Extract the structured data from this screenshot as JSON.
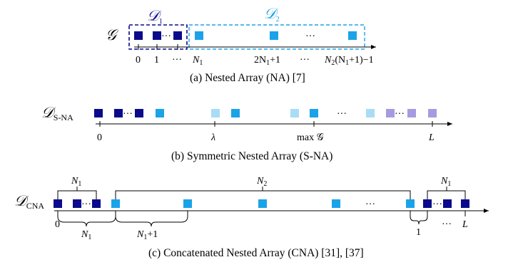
{
  "colors": {
    "dark_blue": "#0a0a8c",
    "cyan": "#1aa3e8",
    "light_cyan": "#a8ddf5",
    "lavender": "#a89ae0",
    "axis": "#000000"
  },
  "panel_a": {
    "set_symbol": "𝒢",
    "d1_symbol": "𝒟",
    "d1_sub": "1",
    "d2_symbol": "𝒟",
    "d2_sub": "2",
    "dots_inner": "···",
    "dots_outer": "···",
    "ticks": {
      "zero": "0",
      "one": "1",
      "dots": "···",
      "n1": "N",
      "n1_sub": "1",
      "two_n1_plus_1": "2N",
      "two_n1_plus_1_sub": "1",
      "two_n1_plus_1_tail": "+1",
      "mid_dots": "···",
      "last": "N",
      "last_sub": "2",
      "last_tail_a": "(N",
      "last_tail_sub": "1",
      "last_tail_b": "+1)−1"
    },
    "caption": "(a) Nested Array (NA) [7]"
  },
  "panel_b": {
    "set_symbol": "𝒟",
    "set_sub": "S-NA",
    "dots_inner": "···",
    "dots_mid": "···",
    "dots_right": "···",
    "ticks": {
      "zero": "0",
      "lambda": "λ",
      "max_g": "max 𝒢",
      "L": "L"
    },
    "caption": "(b) Symmetric Nested Array (S-NA)"
  },
  "panel_c": {
    "set_symbol": "𝒟",
    "set_sub": "CNA",
    "dots_left": "···",
    "dots_mid": "···",
    "dots_right": "···",
    "brace_top_left": "N",
    "brace_top_left_sub": "1",
    "brace_top_mid": "N",
    "brace_top_mid_sub": "2",
    "brace_top_right": "N",
    "brace_top_right_sub": "1",
    "below": {
      "zero": "0",
      "n1": "N",
      "n1_sub": "1",
      "n1p1": "N",
      "n1p1_sub": "1",
      "n1p1_tail": "+1",
      "one": "1",
      "dots": "···",
      "L": "L"
    },
    "caption": "(c) Concatenated Nested Array (CNA) [31], [37]"
  }
}
